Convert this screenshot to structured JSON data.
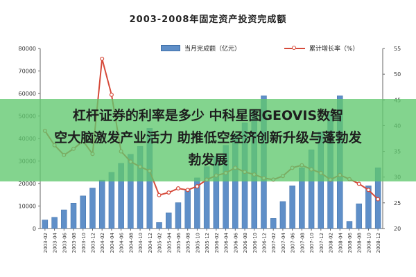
{
  "chart_data": {
    "type": "bar",
    "title": "2003-2008年固定资产投资完成额",
    "legend": [
      "当月完成额（亿元）",
      "累计增长率（%）"
    ],
    "legend_position": "top",
    "grid": false,
    "y_left_ticks": [
      "80000",
      "70000",
      "60000",
      "50000",
      "40000",
      "30000",
      "20000",
      "10000",
      "0"
    ],
    "y_left_lim": [
      0,
      80000
    ],
    "y_right_ticks": [
      "55",
      "50",
      "45",
      "40",
      "35",
      "30",
      "25",
      "20"
    ],
    "y_right_lim": [
      20,
      55
    ],
    "categories": [
      "2003-02",
      "2003-04",
      "2003-06",
      "2003-08",
      "2003-10",
      "2003-12",
      "2004-02",
      "2004-04",
      "2004-06",
      "2004-08",
      "2004-10",
      "2004-12",
      "2005-02",
      "2005-04",
      "2005-06",
      "2005-08",
      "2005-10",
      "2005-12",
      "2006-02",
      "2006-04",
      "2006-06",
      "2006-08",
      "2006-10",
      "2006-12",
      "2007-02",
      "2007-04",
      "2007-06",
      "2007-08",
      "2007-10",
      "2007-12",
      "2008-02",
      "2008-04",
      "2008-06",
      "2008-08",
      "2008-10",
      "2008-12"
    ],
    "series": [
      {
        "name": "当月完成额（亿元）",
        "kind": "bar",
        "axis": "left",
        "color": "#5f8fc8",
        "values": [
          3800,
          5000,
          8300,
          11300,
          14500,
          18000,
          21500,
          25000,
          29000,
          33000,
          36500,
          44500,
          2700,
          7000,
          11500,
          17000,
          22500,
          27500,
          32000,
          37000,
          42000,
          47000,
          53000,
          59000,
          4500,
          12000,
          19000,
          27000,
          35000,
          43000,
          51000,
          59000,
          3200,
          11000,
          19000,
          27000
        ]
      },
      {
        "name": "累计增长率（%）",
        "kind": "line",
        "axis": "right",
        "color": "#d64a3a",
        "values": [
          39.0,
          36.2,
          34.3,
          35.5,
          37.0,
          34.5,
          53.0,
          46.0,
          35.0,
          33.0,
          32.0,
          31.2,
          26.5,
          27.0,
          27.8,
          27.5,
          28.2,
          29.5,
          30.3,
          30.8,
          31.8,
          31.0,
          30.5,
          29.8,
          29.5,
          30.2,
          31.8,
          32.3,
          31.5,
          30.8,
          29.5,
          30.4,
          29.6,
          28.7,
          27.5,
          25.7
        ]
      }
    ]
  },
  "overlay": {
    "line1": "杠杆证券的利率是多少 中科星图GEOVIS数智",
    "line2": "空大脑激发产业活力 助推低空经济创新升级与蓬勃发",
    "line3": "勃发展"
  }
}
